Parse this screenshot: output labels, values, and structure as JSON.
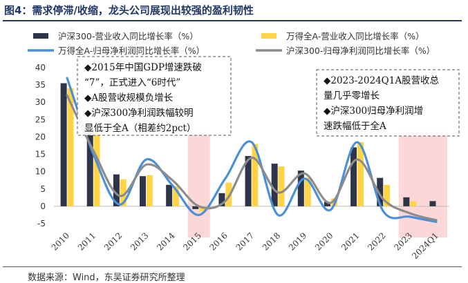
{
  "figure": {
    "title": "图4：需求停滞/收缩，龙头公司展现出较强的盈利韧性",
    "source": "数据来源：Wind，东吴证券研究所整理"
  },
  "chart_data": {
    "type": "bar",
    "categories": [
      "2010",
      "2011",
      "2012",
      "2013",
      "2014",
      "2015",
      "2016",
      "2017",
      "2018",
      "2019",
      "2020",
      "2021",
      "2022",
      "2023",
      "2024Q1"
    ],
    "ylim": [
      -5,
      40
    ],
    "yticks": [
      -5,
      0,
      5,
      10,
      15,
      20,
      25,
      30,
      35,
      40
    ],
    "grid": false,
    "legend_position": "top",
    "series": [
      {
        "name": "沪深300-营业收入同比增长率（%）",
        "kind": "bar",
        "color": "#2f3549",
        "values": [
          35.5,
          22.0,
          9.2,
          8.7,
          6.2,
          -0.8,
          3.8,
          14.5,
          12.3,
          10.3,
          1.3,
          17.0,
          8.2,
          2.6,
          1.5
        ]
      },
      {
        "name": "万得全A-营业收入同比增长率（%）",
        "kind": "bar",
        "color": "#ffd447",
        "values": [
          34.0,
          21.5,
          7.8,
          9.0,
          5.8,
          -1.5,
          6.8,
          18.0,
          11.5,
          8.3,
          2.3,
          18.5,
          6.2,
          1.5,
          null
        ]
      },
      {
        "name": "万得全A-归母净利润同比增长率（%）",
        "kind": "line",
        "color": "#4a90d9",
        "values": [
          37.0,
          15.0,
          0.5,
          13.5,
          6.0,
          -2.5,
          8.0,
          18.5,
          -2.5,
          8.0,
          -1.0,
          18.5,
          -1.5,
          -3.0,
          -4.5
        ]
      },
      {
        "name": "沪深300-归母净利润同比增长率（%）",
        "kind": "line",
        "color": "#8c8c8c",
        "values": [
          32.0,
          16.0,
          3.0,
          12.0,
          7.5,
          0.0,
          1.5,
          14.0,
          4.0,
          9.5,
          1.0,
          13.5,
          2.0,
          -2.0,
          -4.0
        ]
      }
    ],
    "highlight_bands": [
      "2015",
      "2023-2024Q1"
    ],
    "annotations": [
      {
        "lines": [
          "◆2015年中国GDP增速跌破",
          "“7”，正式进入“6时代”",
          "◆A股营收规模负增长",
          "◆沪深300净利润跌幅较明",
          "显低于全A（相差约2pct）"
        ]
      },
      {
        "lines": [
          "◆2023-2024Q1A股营收总",
          "量几乎零增长",
          "◆沪深300归母净利润增",
          "速跌幅低于全A"
        ]
      }
    ]
  }
}
